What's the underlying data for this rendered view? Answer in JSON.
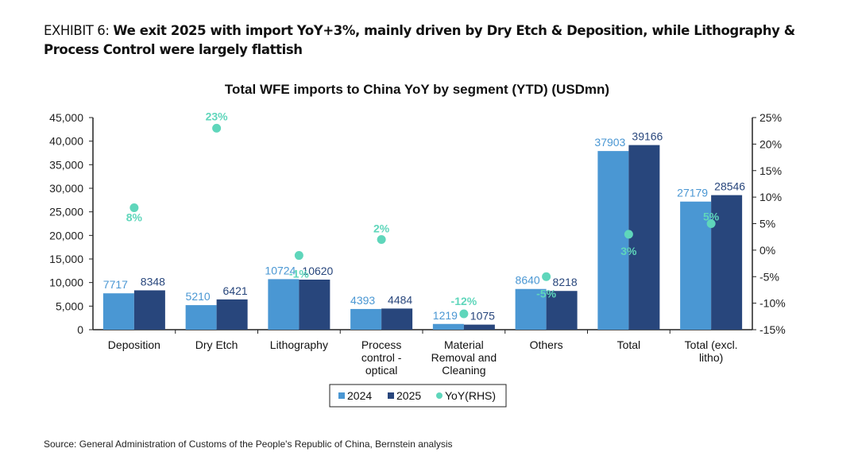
{
  "exhibit": {
    "label": "EXHIBIT 6: ",
    "headline": "We exit 2025 with import YoY+3%, mainly driven by Dry Etch & Deposition, while Lithography & Process Control were largely flattish"
  },
  "source": "Source: General Administration of Customs of the People's Republic of China, Bernstein analysis",
  "colors": {
    "s2024": "#4a97d3",
    "s2025": "#28467c",
    "yoy": "#5fd6bb"
  },
  "chart_data": {
    "type": "bar",
    "title": "Total WFE imports to China YoY by segment (YTD) (USDmn)",
    "categories": [
      [
        "Deposition"
      ],
      [
        "Dry Etch"
      ],
      [
        "Lithography"
      ],
      [
        "Process",
        "control -",
        "optical"
      ],
      [
        "Material",
        "Removal and",
        "Cleaning"
      ],
      [
        "Others"
      ],
      [
        "Total"
      ],
      [
        "Total (excl.",
        "litho)"
      ]
    ],
    "series": [
      {
        "name": "2024",
        "axis": "left",
        "values": [
          7717,
          5210,
          10724,
          4393,
          1219,
          8640,
          37903,
          27179
        ]
      },
      {
        "name": "2025",
        "axis": "left",
        "values": [
          8348,
          6421,
          10620,
          4484,
          1075,
          8218,
          39166,
          28546
        ]
      },
      {
        "name": "YoY(RHS)",
        "axis": "right",
        "type": "scatter",
        "values": [
          8,
          23,
          -1,
          2,
          -12,
          -5,
          3,
          5
        ]
      }
    ],
    "yoy_labels": [
      "8%",
      "23%",
      "-1%",
      "2%",
      "-12%",
      "-5%",
      "3%",
      "5%"
    ],
    "ylim": [
      0,
      45000
    ],
    "yticks": [
      "0",
      "5,000",
      "10,000",
      "15,000",
      "20,000",
      "25,000",
      "30,000",
      "35,000",
      "40,000",
      "45,000"
    ],
    "y2lim": [
      -15,
      25
    ],
    "y2ticks": [
      "-15%",
      "-10%",
      "-5%",
      "0%",
      "5%",
      "10%",
      "15%",
      "20%",
      "25%"
    ],
    "legend": [
      "2024",
      "2025",
      "YoY(RHS)"
    ],
    "legend_position": "bottom",
    "grid": false
  }
}
